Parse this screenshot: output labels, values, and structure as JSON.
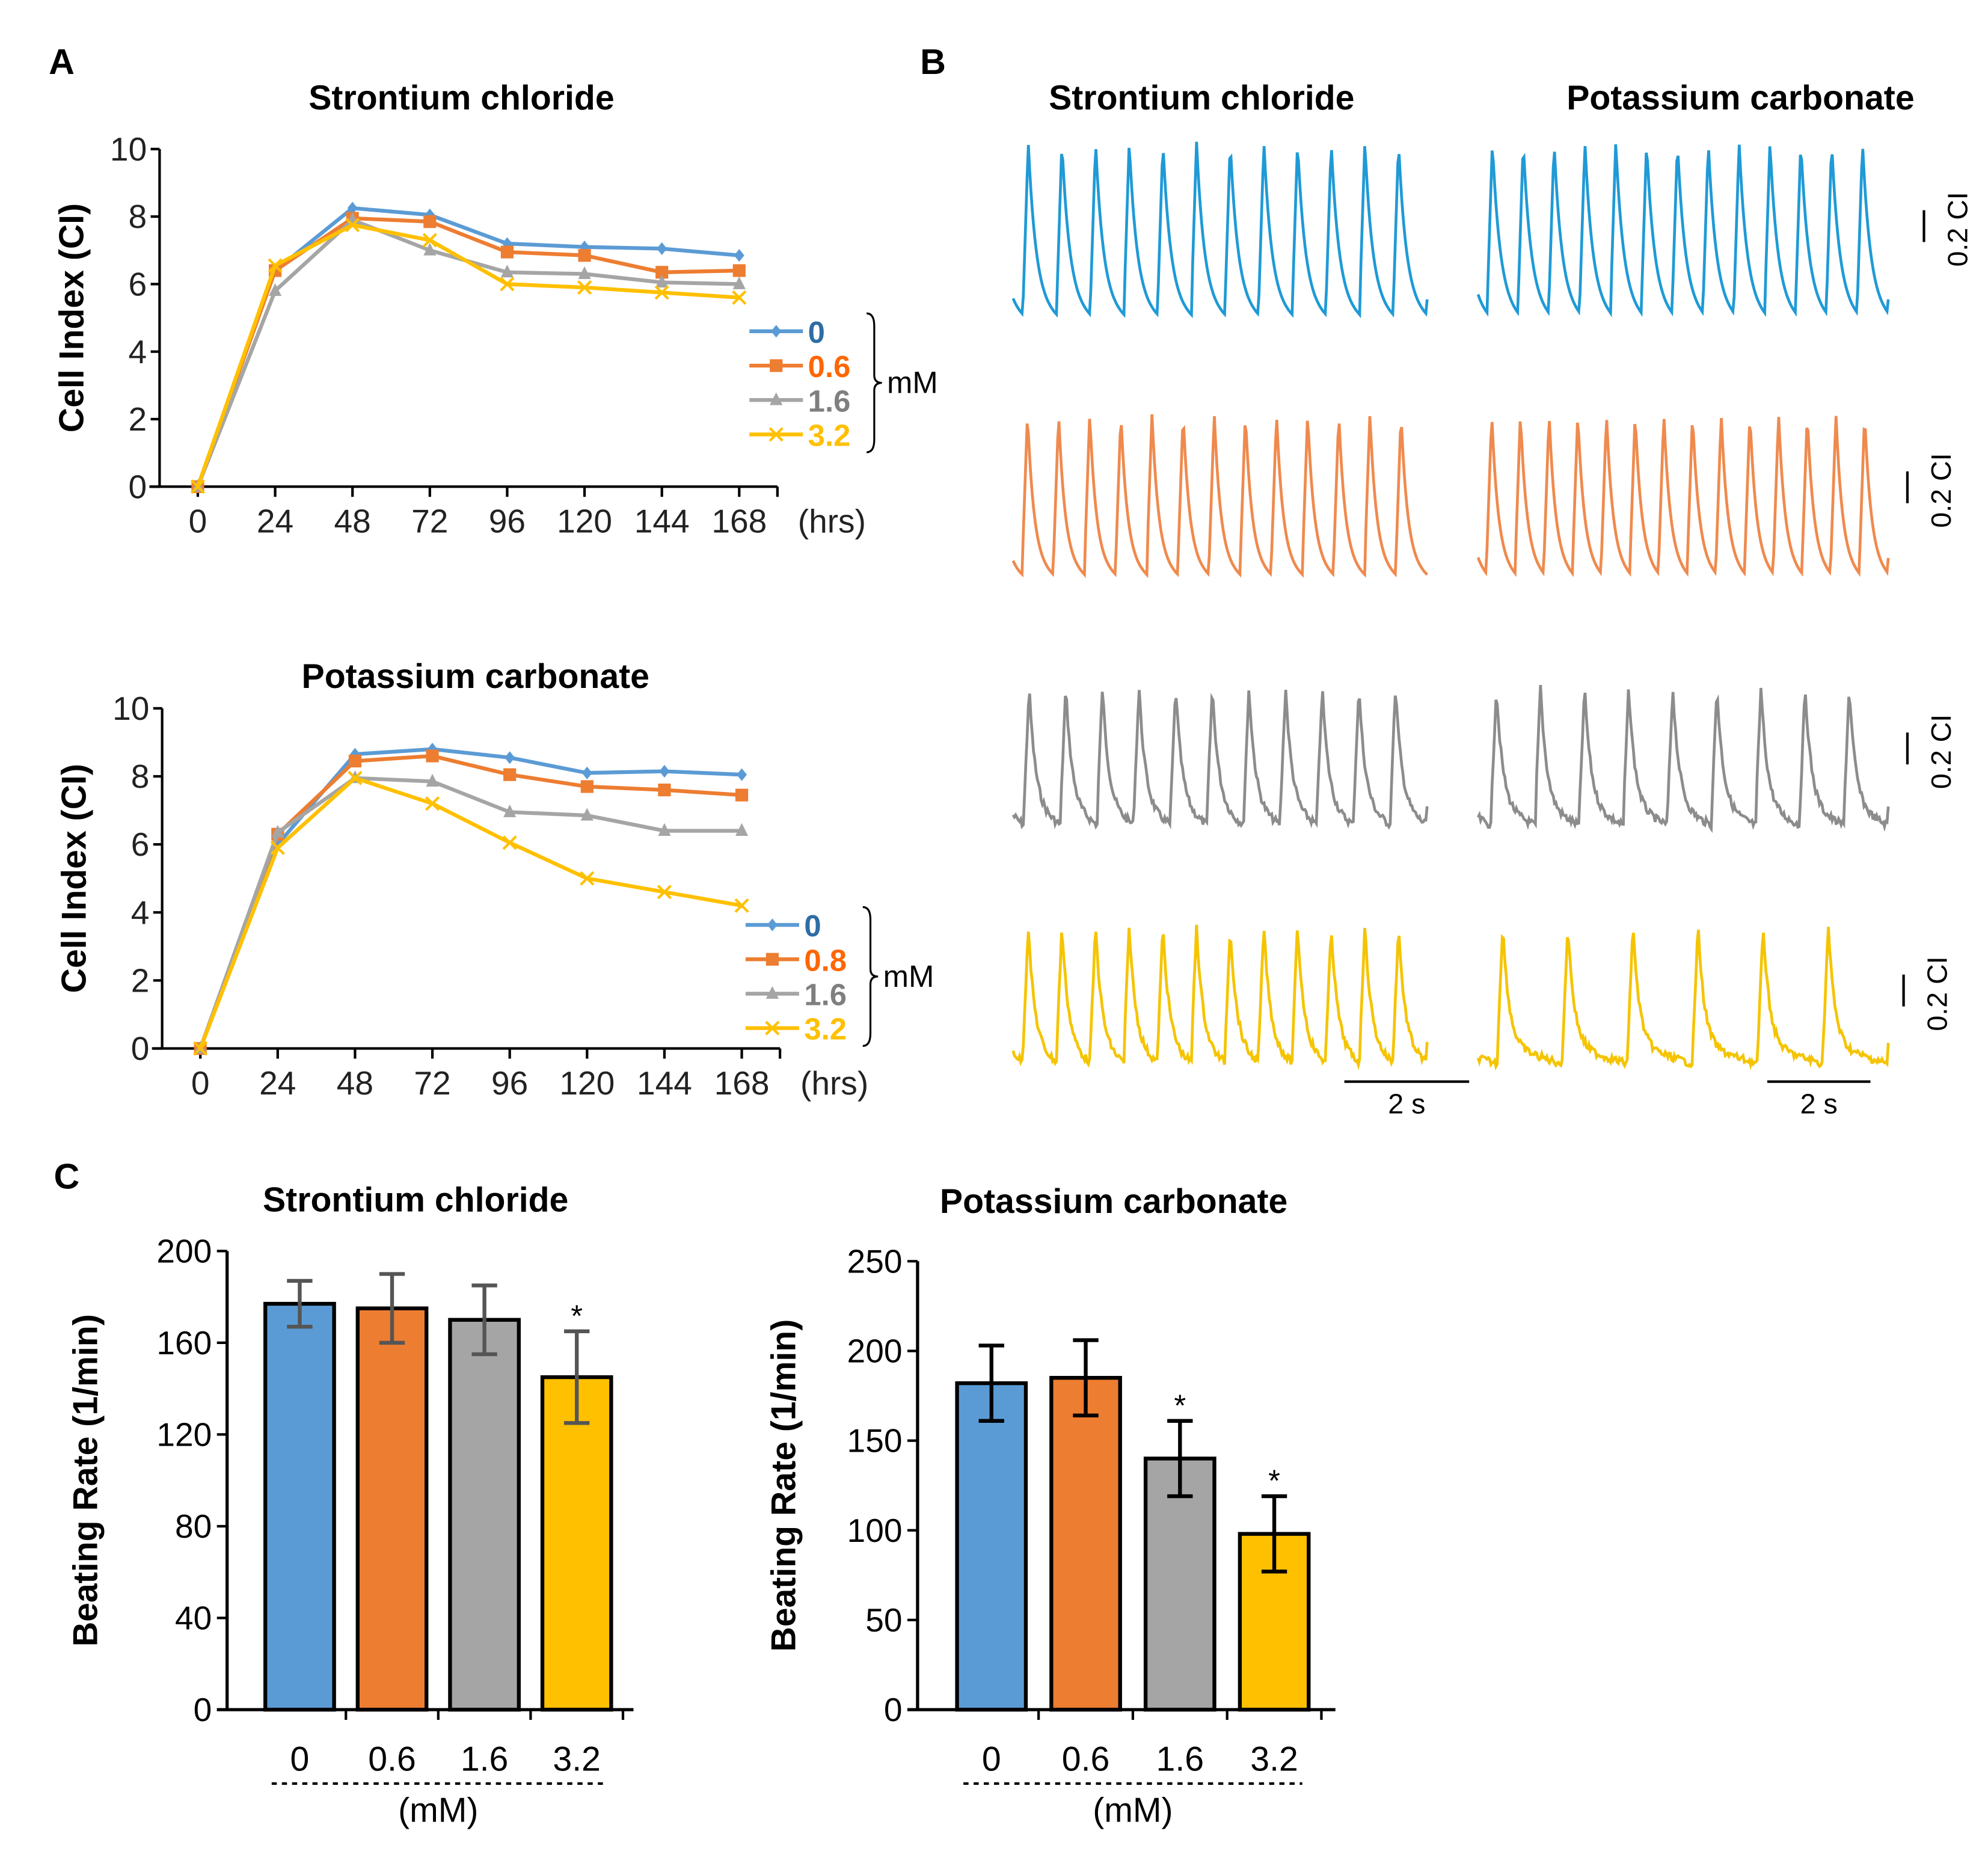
{
  "panel_labels": {
    "a": "A",
    "b": "B",
    "c": "C"
  },
  "colors": {
    "c0": "#5b9bd5",
    "c1": "#ed7d31",
    "c2": "#a5a5a5",
    "c3": "#ffc000",
    "legend0_text": "#2e6da4",
    "legend1_text": "#ff6600",
    "legend2_text": "#7f7f7f",
    "legend3_text": "#ffc000",
    "trace0": "#1f9ad6",
    "trace1": "#ef8a4e",
    "trace2": "#8c8c8c",
    "trace3": "#f5c400"
  },
  "chart_data": [
    {
      "type": "line",
      "panel": "A",
      "title": "Strontium chloride",
      "ylabel": "Cell Index (CI)",
      "x_unit": "(hrs)",
      "x": [
        0,
        24,
        48,
        72,
        96,
        120,
        144,
        168
      ],
      "ylim": [
        0,
        10
      ],
      "yticks": [
        0,
        2,
        4,
        6,
        8,
        10
      ],
      "legend_unit": "mM",
      "legend_position": "right",
      "series": [
        {
          "name": "0",
          "marker": "diamond",
          "values": [
            0,
            6.4,
            8.25,
            8.05,
            7.2,
            7.1,
            7.05,
            6.85
          ]
        },
        {
          "name": "0.6",
          "marker": "square",
          "values": [
            0,
            6.4,
            7.95,
            7.85,
            6.95,
            6.85,
            6.35,
            6.4
          ]
        },
        {
          "name": "1.6",
          "marker": "triangle",
          "values": [
            0,
            5.8,
            7.9,
            7.0,
            6.35,
            6.3,
            6.05,
            6.0
          ]
        },
        {
          "name": "3.2",
          "marker": "x",
          "values": [
            0,
            6.55,
            7.75,
            7.3,
            6.0,
            5.9,
            5.75,
            5.6
          ]
        }
      ]
    },
    {
      "type": "line",
      "panel": "A",
      "title": "Potassium carbonate",
      "ylabel": "Cell Index (CI)",
      "x_unit": "(hrs)",
      "x": [
        0,
        24,
        48,
        72,
        96,
        120,
        144,
        168
      ],
      "ylim": [
        0,
        10
      ],
      "yticks": [
        0,
        2,
        4,
        6,
        8,
        10
      ],
      "legend_unit": "mM",
      "legend_position": "right",
      "series": [
        {
          "name": "0",
          "marker": "diamond",
          "values": [
            0,
            6.0,
            8.65,
            8.8,
            8.55,
            8.1,
            8.15,
            8.05
          ]
        },
        {
          "name": "0.8",
          "marker": "square",
          "values": [
            0,
            6.3,
            8.45,
            8.6,
            8.05,
            7.7,
            7.6,
            7.45
          ]
        },
        {
          "name": "1.6",
          "marker": "triangle",
          "values": [
            0,
            6.35,
            7.95,
            7.85,
            6.95,
            6.85,
            6.4,
            6.4
          ]
        },
        {
          "name": "3.2",
          "marker": "x",
          "values": [
            0,
            5.9,
            7.95,
            7.2,
            6.05,
            5.0,
            4.6,
            4.2
          ]
        }
      ]
    },
    {
      "type": "bar",
      "panel": "C",
      "title": "Strontium chloride",
      "ylabel": "Beating Rate (1/min)",
      "xlabel": "(mM)",
      "categories": [
        "0",
        "0.6",
        "1.6",
        "3.2"
      ],
      "values": [
        177,
        175,
        170,
        145
      ],
      "errors": [
        10,
        15,
        15,
        20
      ],
      "significance": [
        "",
        "",
        "",
        "*"
      ],
      "ylim": [
        0,
        200
      ],
      "yticks": [
        0,
        40,
        80,
        120,
        160,
        200
      ]
    },
    {
      "type": "bar",
      "panel": "C",
      "title": "Potassium carbonate",
      "ylabel": "Beating Rate (1/min)",
      "xlabel": "(mM)",
      "categories": [
        "0",
        "0.6",
        "1.6",
        "3.2"
      ],
      "values": [
        182,
        185,
        140,
        98
      ],
      "errors": [
        21,
        21,
        21,
        21
      ],
      "significance": [
        "",
        "",
        "*",
        "*"
      ],
      "ylim": [
        0,
        250
      ],
      "yticks": [
        0,
        50,
        100,
        150,
        200,
        250
      ]
    }
  ],
  "panel_b": {
    "titles": [
      "Strontium chloride",
      "Potassium carbonate"
    ],
    "amplitude_scale_label": "0.2 CI",
    "time_scale_label": "2 s",
    "beats_shown": [
      [
        12,
        13
      ],
      [
        13,
        14
      ],
      [
        11,
        9
      ],
      [
        12,
        6
      ]
    ]
  }
}
